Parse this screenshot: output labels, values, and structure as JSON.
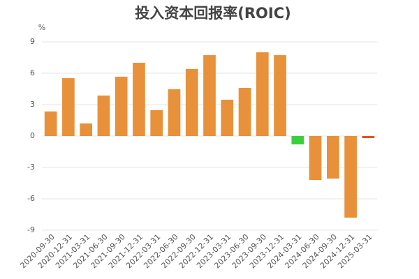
{
  "chart_data": {
    "type": "bar",
    "title": "投入资本回报率(ROIC)",
    "y_unit": "%",
    "categories": [
      "2020-09-30",
      "2020-12-31",
      "2021-03-31",
      "2021-06-30",
      "2021-09-30",
      "2021-12-31",
      "2022-03-31",
      "2022-06-30",
      "2022-09-30",
      "2022-12-31",
      "2023-03-31",
      "2023-06-30",
      "2023-09-30",
      "2023-12-31",
      "2024-03-31",
      "2024-06-30",
      "2024-09-30",
      "2024-12-31",
      "2025-03-31"
    ],
    "values": [
      2.35,
      5.53,
      1.2,
      3.87,
      5.67,
      7.0,
      2.47,
      4.47,
      6.4,
      7.73,
      3.47,
      4.6,
      8.0,
      7.73,
      -0.8,
      -4.2,
      -4.07,
      -7.8,
      -0.2
    ],
    "colors": [
      "#e8913a",
      "#e8913a",
      "#e8913a",
      "#e8913a",
      "#e8913a",
      "#e8913a",
      "#e8913a",
      "#e8913a",
      "#e8913a",
      "#e8913a",
      "#e8913a",
      "#e8913a",
      "#e8913a",
      "#e8913a",
      "#3ccf3c",
      "#e8913a",
      "#e8913a",
      "#e8913a",
      "#e2541c"
    ],
    "ylim": [
      -9,
      9
    ],
    "yticks": [
      -9,
      -6,
      -3,
      0,
      3,
      6,
      9
    ],
    "grid": true
  }
}
